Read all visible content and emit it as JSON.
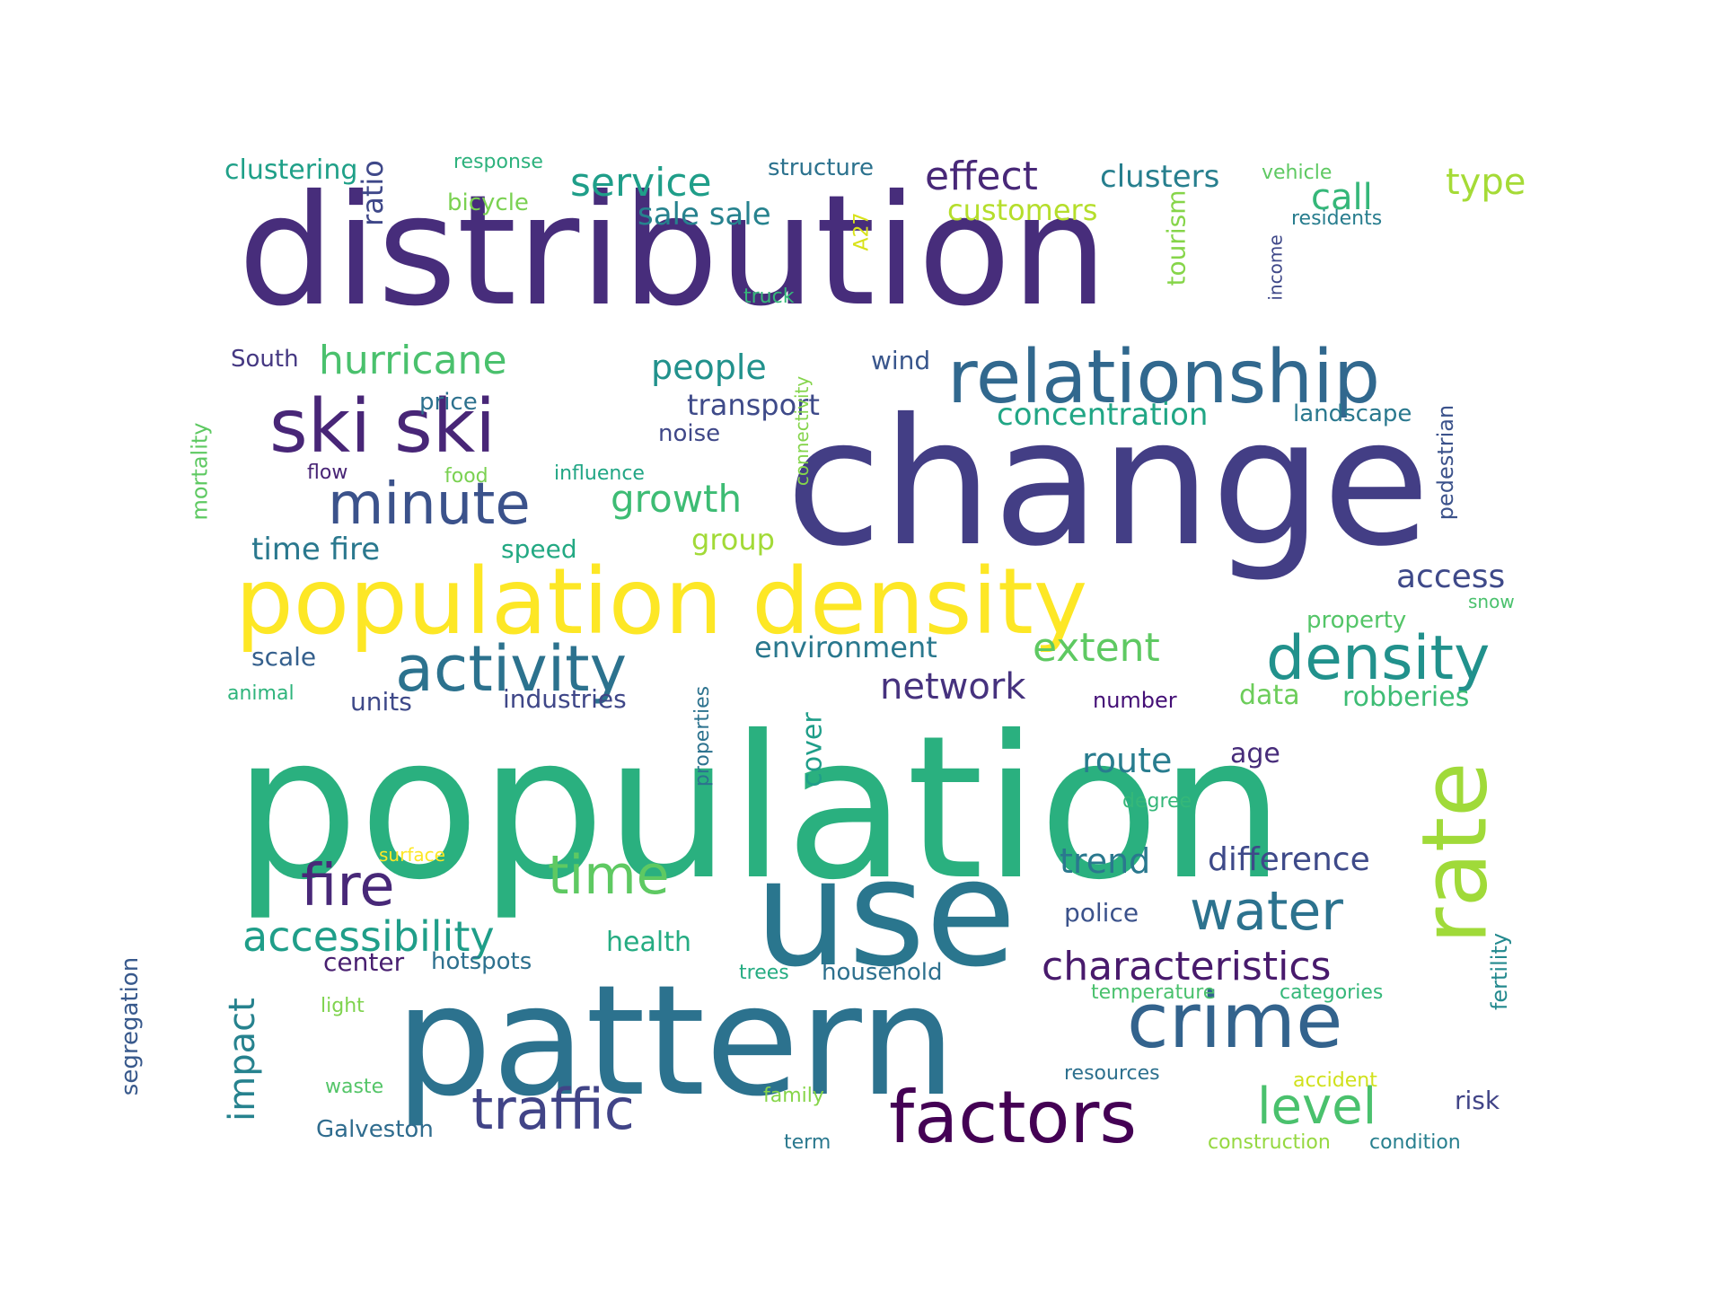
{
  "words": [
    {
      "text": "population",
      "color": "#2ab07f"
    },
    {
      "text": "distribution",
      "color": "#472d7b"
    },
    {
      "text": "change",
      "color": "#433e85"
    },
    {
      "text": "pattern",
      "color": "#2c728e"
    },
    {
      "text": "use",
      "color": "#2a768e"
    },
    {
      "text": "population density",
      "color": "#fde725"
    },
    {
      "text": "relationship",
      "color": "#31688e"
    },
    {
      "text": "ski ski",
      "color": "#482677"
    },
    {
      "text": "crime",
      "color": "#33638d"
    },
    {
      "text": "factors",
      "color": "#440154"
    },
    {
      "text": "activity",
      "color": "#2c728e"
    },
    {
      "text": "density",
      "color": "#21918c"
    },
    {
      "text": "rate",
      "color": "#a0da39"
    },
    {
      "text": "minute",
      "color": "#3b528b"
    },
    {
      "text": "fire",
      "color": "#482878"
    },
    {
      "text": "time",
      "color": "#5ec962"
    },
    {
      "text": "traffic",
      "color": "#414487"
    },
    {
      "text": "water",
      "color": "#2c728e"
    },
    {
      "text": "level",
      "color": "#4ac16d"
    },
    {
      "text": "accessibility",
      "color": "#1f9e89"
    },
    {
      "text": "characteristics",
      "color": "#481a6c"
    },
    {
      "text": "hurricane",
      "color": "#4ac16d"
    },
    {
      "text": "service",
      "color": "#1f9e89"
    },
    {
      "text": "effect",
      "color": "#482878"
    },
    {
      "text": "extent",
      "color": "#5ec962"
    },
    {
      "text": "growth",
      "color": "#3dbc74"
    },
    {
      "text": "people",
      "color": "#21918c"
    },
    {
      "text": "route",
      "color": "#287c8e"
    },
    {
      "text": "trend",
      "color": "#2a788e"
    },
    {
      "text": "difference",
      "color": "#3e4a89"
    },
    {
      "text": "impact",
      "color": "#26828e"
    },
    {
      "text": "network",
      "color": "#46327e"
    },
    {
      "text": "access",
      "color": "#3e4989"
    },
    {
      "text": "concentration",
      "color": "#21a685"
    },
    {
      "text": "type",
      "color": "#a5db36"
    },
    {
      "text": "call",
      "color": "#35b779"
    },
    {
      "text": "clusters",
      "color": "#277f8e"
    },
    {
      "text": "transport",
      "color": "#3e4a89"
    },
    {
      "text": "environment",
      "color": "#2a788e"
    },
    {
      "text": "time fire",
      "color": "#2a788e"
    },
    {
      "text": "data",
      "color": "#6ccd5a"
    },
    {
      "text": "robberies",
      "color": "#3dbc74"
    },
    {
      "text": "age",
      "color": "#472c7a"
    },
    {
      "text": "group",
      "color": "#a2da37"
    },
    {
      "text": "sale sale",
      "color": "#26828e"
    },
    {
      "text": "customers",
      "color": "#b5de2b"
    },
    {
      "text": "health",
      "color": "#25ac82"
    },
    {
      "text": "police",
      "color": "#3b528b"
    },
    {
      "text": "units",
      "color": "#3e4989"
    },
    {
      "text": "industries",
      "color": "#3f4788"
    },
    {
      "text": "clustering",
      "color": "#1fa088"
    },
    {
      "text": "center",
      "color": "#481f70"
    },
    {
      "text": "hotspots",
      "color": "#2d708e"
    },
    {
      "text": "household",
      "color": "#2d708e"
    },
    {
      "text": "cover",
      "color": "#1f9e89"
    },
    {
      "text": "ratio",
      "color": "#3f4889"
    },
    {
      "text": "tourism",
      "color": "#86d549"
    },
    {
      "text": "wind",
      "color": "#39568c"
    },
    {
      "text": "speed",
      "color": "#23a983"
    },
    {
      "text": "scale",
      "color": "#35608d"
    },
    {
      "text": "segregation",
      "color": "#38598c"
    },
    {
      "text": "Galveston",
      "color": "#2f6c8e"
    },
    {
      "text": "pedestrian",
      "color": "#3b528b"
    },
    {
      "text": "fertility",
      "color": "#23898e"
    },
    {
      "text": "risk",
      "color": "#414487"
    },
    {
      "text": "property",
      "color": "#54c568"
    },
    {
      "text": "structure",
      "color": "#2c728e"
    },
    {
      "text": "bicycle",
      "color": "#7ad151"
    },
    {
      "text": "South",
      "color": "#453882"
    },
    {
      "text": "mortality",
      "color": "#5ec962"
    },
    {
      "text": "price",
      "color": "#2c718e"
    },
    {
      "text": "noise",
      "color": "#3f4788"
    },
    {
      "text": "landscape",
      "color": "#2a788e"
    },
    {
      "text": "number",
      "color": "#440f76"
    },
    {
      "text": "properties",
      "color": "#2c728e"
    },
    {
      "text": "degree",
      "color": "#35b779"
    },
    {
      "text": "residents",
      "color": "#287d8e"
    },
    {
      "text": "income",
      "color": "#3f4889"
    },
    {
      "text": "response",
      "color": "#2db27d"
    },
    {
      "text": "vehicle",
      "color": "#5ec962"
    },
    {
      "text": "A27",
      "color": "#d8e219"
    },
    {
      "text": "truck",
      "color": "#35b779"
    },
    {
      "text": "connectivity",
      "color": "#84d44b"
    },
    {
      "text": "flow",
      "color": "#482475"
    },
    {
      "text": "food",
      "color": "#7ad151"
    },
    {
      "text": "influence",
      "color": "#21a685"
    },
    {
      "text": "snow",
      "color": "#4ac16d"
    },
    {
      "text": "animal",
      "color": "#2fb47c"
    },
    {
      "text": "surface",
      "color": "#fde725"
    },
    {
      "text": "light",
      "color": "#7fd34e"
    },
    {
      "text": "waste",
      "color": "#54c568"
    },
    {
      "text": "family",
      "color": "#86d549"
    },
    {
      "text": "term",
      "color": "#2a788e"
    },
    {
      "text": "trees",
      "color": "#25ac82"
    },
    {
      "text": "temperature",
      "color": "#4ac16d"
    },
    {
      "text": "categories",
      "color": "#35b779"
    },
    {
      "text": "resources",
      "color": "#2d708e"
    },
    {
      "text": "accident",
      "color": "#d0e11c"
    },
    {
      "text": "construction",
      "color": "#95d840"
    },
    {
      "text": "condition",
      "color": "#277f8e"
    }
  ]
}
